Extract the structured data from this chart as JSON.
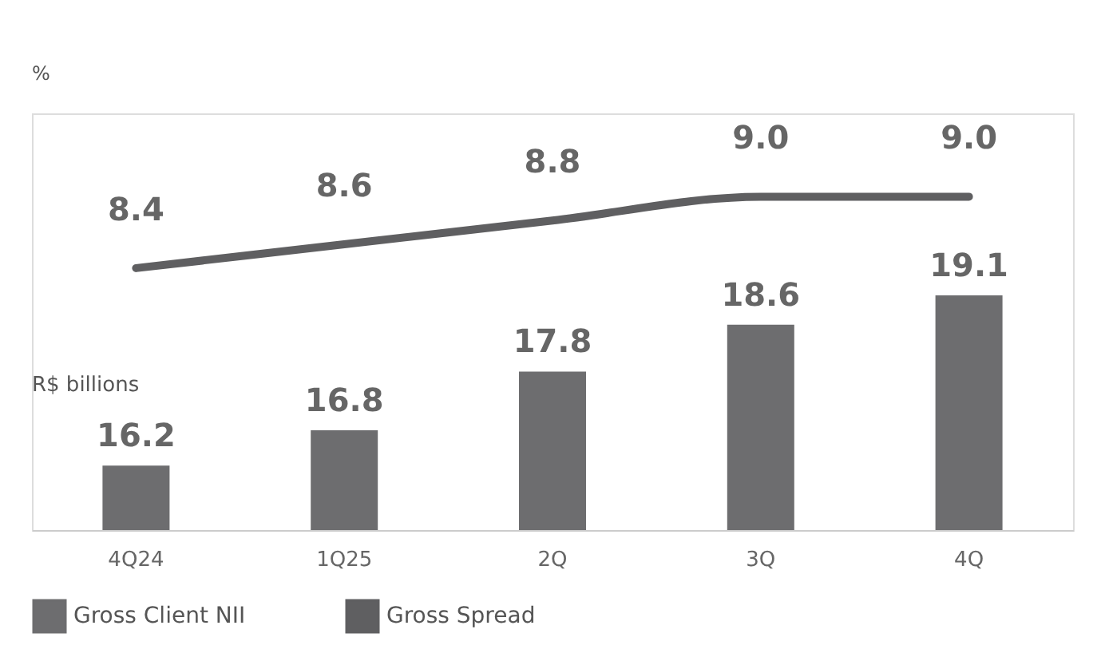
{
  "chart_data": {
    "type": "bar",
    "categories": [
      "4Q24",
      "1Q25",
      "2Q",
      "3Q",
      "4Q"
    ],
    "ylabel": "R$ billions",
    "y2label": "%",
    "ylim": [
      15.1,
      22.2
    ],
    "y2lim": [
      6.2,
      9.7
    ],
    "series": [
      {
        "name": "Gross Client NII",
        "color": "#6d6d6f",
        "values": [
          16.2,
          16.8,
          17.8,
          18.6,
          19.1
        ],
        "value_labels": [
          "16.2",
          "16.8",
          "17.8",
          "18.6",
          "19.1"
        ]
      },
      {
        "name": "Gross Spread",
        "type": "line",
        "axis": "y2",
        "color": "#5f5f61",
        "values": [
          8.4,
          8.6,
          8.8,
          9.0,
          9.0
        ],
        "value_labels": [
          "8.4",
          "8.6",
          "8.8",
          "9.0",
          "9.0"
        ]
      }
    ],
    "legend": "bottom",
    "tick_labels": "x"
  }
}
